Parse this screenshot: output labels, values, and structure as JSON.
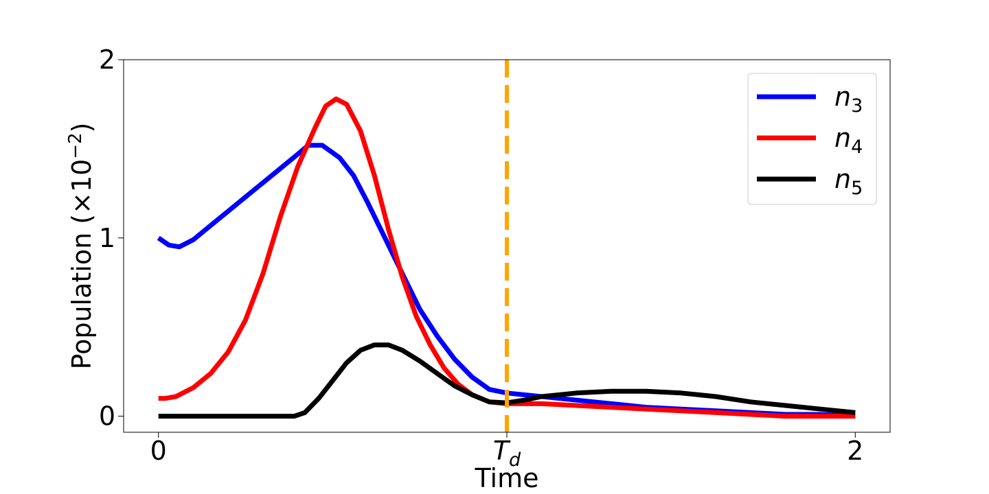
{
  "chart_data": {
    "type": "line",
    "xlabel": "Time",
    "ylabel": "Population (×10",
    "ylabel_exponent": "−2",
    "ylabel_close": ")",
    "xlim": [
      -0.1,
      2.1
    ],
    "ylim": [
      -0.09,
      2.0
    ],
    "x_ticks": [
      {
        "value": 0,
        "label": "0"
      },
      {
        "value": 1,
        "label": "T",
        "subscript": "d"
      },
      {
        "value": 2,
        "label": "2"
      }
    ],
    "y_ticks": [
      {
        "value": 0,
        "label": "0"
      },
      {
        "value": 1,
        "label": "1"
      },
      {
        "value": 2,
        "label": "2"
      }
    ],
    "grid": false,
    "legend_position": "top-right",
    "vline": {
      "x": 1.0,
      "color": "#FFA500",
      "style": "dashed"
    },
    "series": [
      {
        "name": "n",
        "subscript": "3",
        "color": "#0000FF",
        "points": [
          [
            0,
            1.0
          ],
          [
            0.03,
            0.96
          ],
          [
            0.06,
            0.95
          ],
          [
            0.1,
            0.99
          ],
          [
            0.15,
            1.07
          ],
          [
            0.2,
            1.15
          ],
          [
            0.25,
            1.23
          ],
          [
            0.3,
            1.31
          ],
          [
            0.35,
            1.39
          ],
          [
            0.4,
            1.47
          ],
          [
            0.43,
            1.52
          ],
          [
            0.47,
            1.52
          ],
          [
            0.52,
            1.45
          ],
          [
            0.56,
            1.35
          ],
          [
            0.6,
            1.2
          ],
          [
            0.65,
            1.0
          ],
          [
            0.7,
            0.8
          ],
          [
            0.75,
            0.6
          ],
          [
            0.8,
            0.45
          ],
          [
            0.85,
            0.32
          ],
          [
            0.9,
            0.22
          ],
          [
            0.95,
            0.15
          ],
          [
            1.0,
            0.13
          ],
          [
            1.1,
            0.11
          ],
          [
            1.2,
            0.09
          ],
          [
            1.3,
            0.07
          ],
          [
            1.4,
            0.05
          ],
          [
            1.5,
            0.04
          ],
          [
            1.6,
            0.03
          ],
          [
            1.7,
            0.02
          ],
          [
            1.8,
            0.01
          ],
          [
            1.9,
            0.01
          ],
          [
            2.0,
            0.0
          ]
        ]
      },
      {
        "name": "n",
        "subscript": "4",
        "color": "#FF0000",
        "points": [
          [
            0,
            0.1
          ],
          [
            0.02,
            0.1
          ],
          [
            0.05,
            0.11
          ],
          [
            0.1,
            0.16
          ],
          [
            0.15,
            0.24
          ],
          [
            0.2,
            0.36
          ],
          [
            0.25,
            0.54
          ],
          [
            0.3,
            0.8
          ],
          [
            0.35,
            1.12
          ],
          [
            0.4,
            1.4
          ],
          [
            0.45,
            1.62
          ],
          [
            0.48,
            1.74
          ],
          [
            0.51,
            1.78
          ],
          [
            0.54,
            1.75
          ],
          [
            0.58,
            1.6
          ],
          [
            0.62,
            1.35
          ],
          [
            0.66,
            1.05
          ],
          [
            0.7,
            0.78
          ],
          [
            0.74,
            0.56
          ],
          [
            0.78,
            0.4
          ],
          [
            0.82,
            0.27
          ],
          [
            0.86,
            0.18
          ],
          [
            0.9,
            0.12
          ],
          [
            0.95,
            0.08
          ],
          [
            1.0,
            0.07
          ],
          [
            1.1,
            0.07
          ],
          [
            1.2,
            0.06
          ],
          [
            1.3,
            0.05
          ],
          [
            1.4,
            0.04
          ],
          [
            1.5,
            0.03
          ],
          [
            1.6,
            0.02
          ],
          [
            1.7,
            0.01
          ],
          [
            1.8,
            0.0
          ],
          [
            1.9,
            0.0
          ],
          [
            2.0,
            0.0
          ]
        ]
      },
      {
        "name": "n",
        "subscript": "5",
        "color": "#000000",
        "points": [
          [
            0,
            0.0
          ],
          [
            0.2,
            0.0
          ],
          [
            0.39,
            0.0
          ],
          [
            0.42,
            0.02
          ],
          [
            0.46,
            0.1
          ],
          [
            0.5,
            0.2
          ],
          [
            0.54,
            0.3
          ],
          [
            0.58,
            0.37
          ],
          [
            0.62,
            0.4
          ],
          [
            0.66,
            0.4
          ],
          [
            0.7,
            0.37
          ],
          [
            0.75,
            0.31
          ],
          [
            0.8,
            0.24
          ],
          [
            0.85,
            0.17
          ],
          [
            0.9,
            0.12
          ],
          [
            0.95,
            0.08
          ],
          [
            1.0,
            0.075
          ],
          [
            1.05,
            0.09
          ],
          [
            1.1,
            0.11
          ],
          [
            1.2,
            0.13
          ],
          [
            1.3,
            0.14
          ],
          [
            1.4,
            0.14
          ],
          [
            1.5,
            0.13
          ],
          [
            1.6,
            0.11
          ],
          [
            1.7,
            0.08
          ],
          [
            1.8,
            0.06
          ],
          [
            1.9,
            0.04
          ],
          [
            2.0,
            0.02
          ]
        ]
      }
    ]
  }
}
